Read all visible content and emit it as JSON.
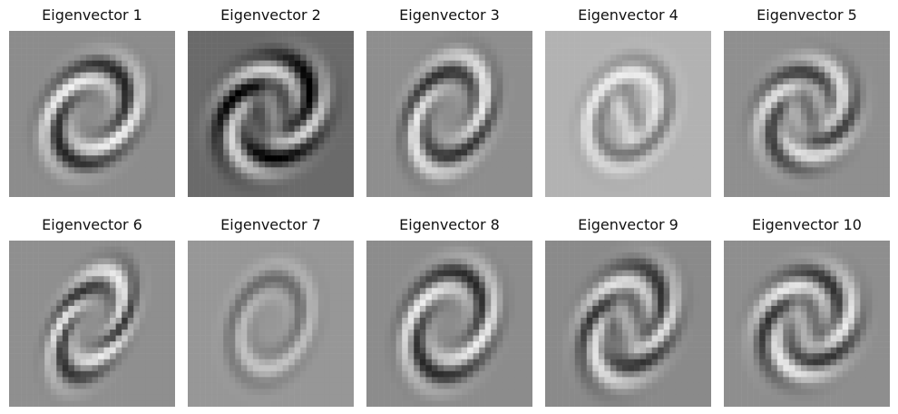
{
  "panels": [
    {
      "title": "Eigenvector 1",
      "bg": "#8c8c8c",
      "ink": "ring",
      "tone": 0
    },
    {
      "title": "Eigenvector 2",
      "bg": "#6a6a6a",
      "ink": "double",
      "tone": 1
    },
    {
      "title": "Eigenvector 3",
      "bg": "#8e8e8e",
      "ink": "oval",
      "tone": 2
    },
    {
      "title": "Eigenvector 4",
      "bg": "#b2b2b2",
      "ink": "blob",
      "tone": 3
    },
    {
      "title": "Eigenvector 5",
      "bg": "#8f8f8f",
      "ink": "stripe",
      "tone": 4
    },
    {
      "title": "Eigenvector 6",
      "bg": "#8f8f8f",
      "ink": "narrow",
      "tone": 5
    },
    {
      "title": "Eigenvector 7",
      "bg": "#979797",
      "ink": "soft",
      "tone": 6
    },
    {
      "title": "Eigenvector 8",
      "bg": "#8c8c8c",
      "ink": "oval",
      "tone": 7
    },
    {
      "title": "Eigenvector 9",
      "bg": "#8a8a8a",
      "ink": "double",
      "tone": 8
    },
    {
      "title": "Eigenvector 10",
      "bg": "#8e8e8e",
      "ink": "stripe",
      "tone": 9
    }
  ]
}
